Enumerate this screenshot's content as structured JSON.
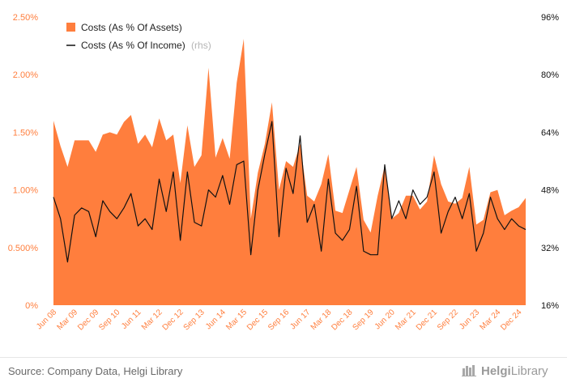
{
  "chart_data": {
    "type": "area",
    "legend_position": "top-left",
    "grid": false,
    "colors": {
      "area": "#ff7e3d",
      "line": "#111111",
      "left_ticks": "#ff7e3d",
      "right_ticks": "#111111"
    },
    "y_left": {
      "ylim": [
        0,
        2.5
      ],
      "ticks": [
        "0%",
        "0.500%",
        "1.00%",
        "1.50%",
        "2.00%",
        "2.50%"
      ]
    },
    "y_right": {
      "ylim": [
        16,
        96
      ],
      "ticks": [
        "16%",
        "32%",
        "48%",
        "64%",
        "80%",
        "96%"
      ]
    },
    "x_ticks": [
      "Jun 08",
      "Mar 09",
      "Dec 09",
      "Sep 10",
      "Jun 11",
      "Mar 12",
      "Dec 12",
      "Sep 13",
      "Jun 14",
      "Mar 15",
      "Dec 15",
      "Sep 16",
      "Jun 17",
      "Mar 18",
      "Dec 18",
      "Sep 19",
      "Jun 20",
      "Mar 21",
      "Dec 21",
      "Sep 22",
      "Jun 23",
      "Mar 24",
      "Dec 24"
    ],
    "series": [
      {
        "name": "Costs (As % Of Assets)",
        "axis": "left",
        "kind": "area",
        "values": [
          1.6,
          1.38,
          1.2,
          1.43,
          1.43,
          1.43,
          1.33,
          1.48,
          1.5,
          1.48,
          1.59,
          1.65,
          1.4,
          1.48,
          1.37,
          1.62,
          1.43,
          1.48,
          1.06,
          1.56,
          1.2,
          1.3,
          2.06,
          1.28,
          1.45,
          1.27,
          1.93,
          2.31,
          0.75,
          1.15,
          1.4,
          1.76,
          1.0,
          1.25,
          1.2,
          1.4,
          0.95,
          0.9,
          1.05,
          1.31,
          0.82,
          0.8,
          1.0,
          1.2,
          0.74,
          0.63,
          0.95,
          1.21,
          0.75,
          0.8,
          0.95,
          0.95,
          0.83,
          0.9,
          1.3,
          1.05,
          0.9,
          0.88,
          0.93,
          1.2,
          0.7,
          0.74,
          0.98,
          1.0,
          0.78,
          0.82,
          0.85,
          0.93
        ]
      },
      {
        "name": "Costs (As % Of Income)",
        "axis_suffix": "(rhs)",
        "axis": "right",
        "kind": "line",
        "values": [
          46,
          40,
          28,
          41,
          43,
          42,
          35,
          45,
          42,
          40,
          43,
          47,
          38,
          40,
          37,
          51,
          42,
          53,
          34,
          53,
          39,
          38,
          48,
          46,
          52,
          44,
          55,
          56,
          30,
          48,
          58,
          67,
          35,
          54,
          47,
          63,
          39,
          44,
          31,
          51,
          36,
          34,
          37,
          49,
          31,
          30,
          30,
          55,
          40,
          45,
          40,
          48,
          44,
          46,
          53,
          36,
          42,
          46,
          40,
          47,
          31,
          36,
          46,
          40,
          37,
          40,
          38,
          37
        ]
      }
    ]
  },
  "footer": {
    "source": "Source: Company Data, Helgi Library",
    "brand_part1": "Helgi",
    "brand_part2": "Library"
  }
}
